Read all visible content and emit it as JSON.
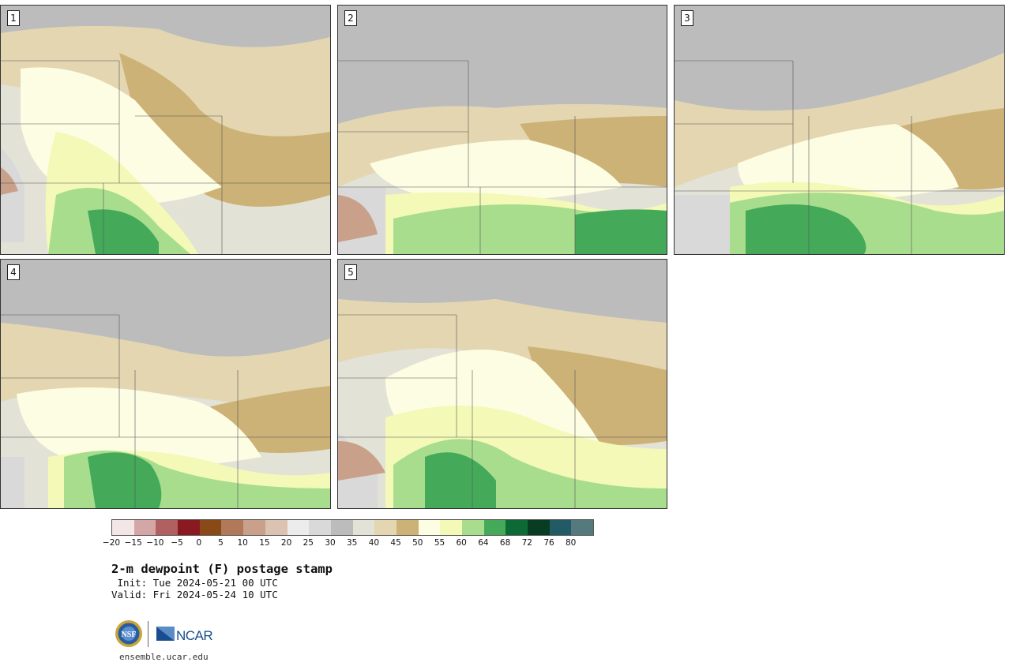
{
  "panels": [
    {
      "label": "1"
    },
    {
      "label": "2"
    },
    {
      "label": "3"
    },
    {
      "label": "4"
    },
    {
      "label": "5"
    }
  ],
  "colorbar": {
    "colors": [
      "#f2e6e6",
      "#d4a6a6",
      "#b06060",
      "#8a1a22",
      "#8a4a18",
      "#b07a5a",
      "#c9a08a",
      "#dcc2b0",
      "#ececec",
      "#d9d9d9",
      "#bcbcbc",
      "#e2e2d6",
      "#e3d6b0",
      "#cdb277",
      "#fdfde4",
      "#f4f9b8",
      "#a8dd8e",
      "#45a95a",
      "#0c6b35",
      "#083d24",
      "#225a66",
      "#557a7d"
    ],
    "ticks": [
      "−20",
      "−15",
      "−10",
      "−5",
      "0",
      "5",
      "10",
      "15",
      "20",
      "25",
      "30",
      "35",
      "40",
      "45",
      "50",
      "55",
      "60",
      "64",
      "68",
      "72",
      "76",
      "80"
    ]
  },
  "title": "2-m dewpoint (F) postage stamp",
  "init": " Init: Tue 2024-05-21 00 UTC",
  "valid": "Valid: Fri 2024-05-24 10 UTC",
  "logos": {
    "nsf": "NSF",
    "ncar": "NCAR"
  },
  "site": "ensemble.ucar.edu"
}
